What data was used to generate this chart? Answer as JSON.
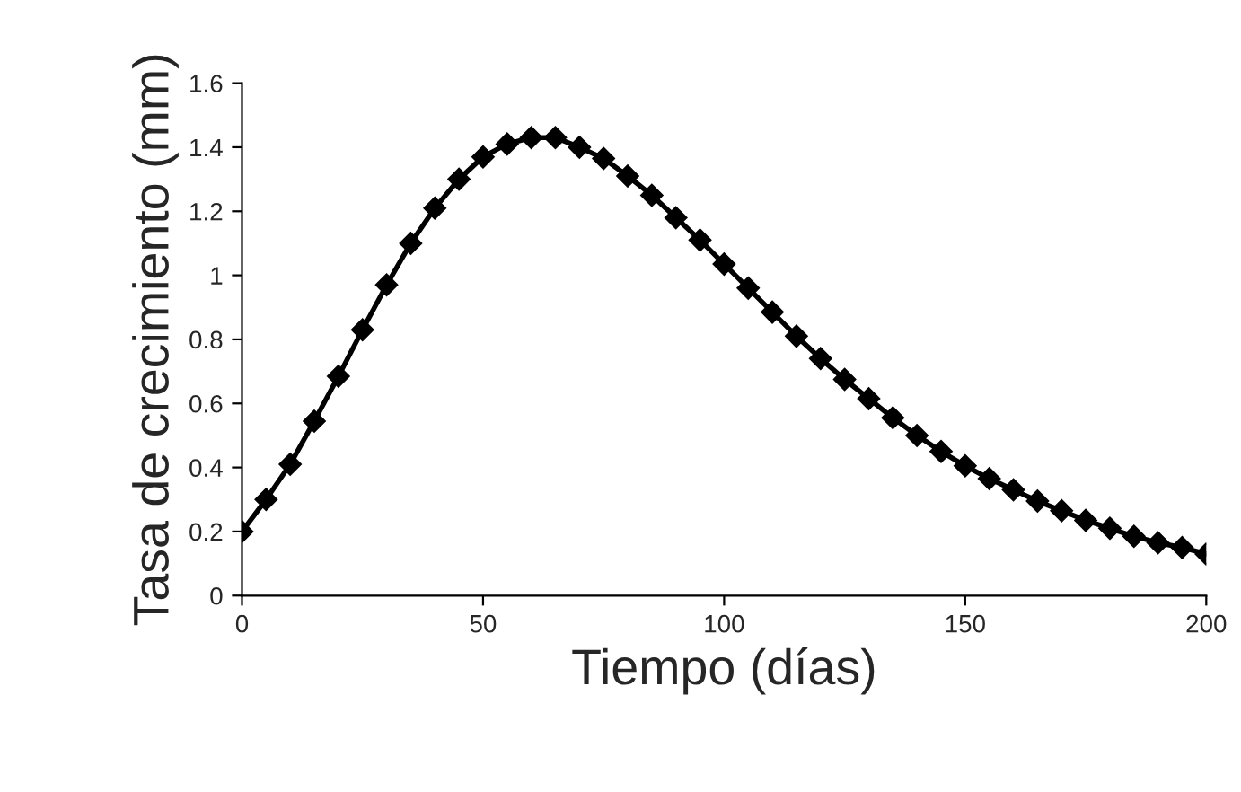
{
  "chart_data": {
    "type": "line",
    "xlabel": "Tiempo (días)",
    "ylabel": "Tasa de crecimiento (mm)",
    "x": [
      0,
      5,
      10,
      15,
      20,
      25,
      30,
      35,
      40,
      45,
      50,
      55,
      60,
      65,
      70,
      75,
      80,
      85,
      90,
      95,
      100,
      105,
      110,
      115,
      120,
      125,
      130,
      135,
      140,
      145,
      150,
      155,
      160,
      165,
      170,
      175,
      180,
      185,
      190,
      195,
      200
    ],
    "series": [
      {
        "color": "#000000",
        "values": [
          0.2,
          0.3,
          0.41,
          0.545,
          0.685,
          0.83,
          0.97,
          1.1,
          1.21,
          1.3,
          1.37,
          1.41,
          1.43,
          1.43,
          1.4,
          1.365,
          1.31,
          1.25,
          1.18,
          1.11,
          1.035,
          0.96,
          0.885,
          0.81,
          0.74,
          0.675,
          0.615,
          0.555,
          0.5,
          0.45,
          0.405,
          0.365,
          0.33,
          0.295,
          0.265,
          0.235,
          0.21,
          0.185,
          0.165,
          0.15,
          0.13
        ]
      }
    ],
    "xlim": [
      0,
      200
    ],
    "xticks": [
      0,
      50,
      100,
      150,
      200
    ],
    "ylim": [
      0,
      1.6
    ],
    "yticks": [
      0,
      0.2,
      0.4,
      0.6,
      0.8,
      1,
      1.2,
      1.4,
      1.6
    ],
    "marker": "diamond",
    "line_style": "solid",
    "grid": false,
    "legend": false
  }
}
